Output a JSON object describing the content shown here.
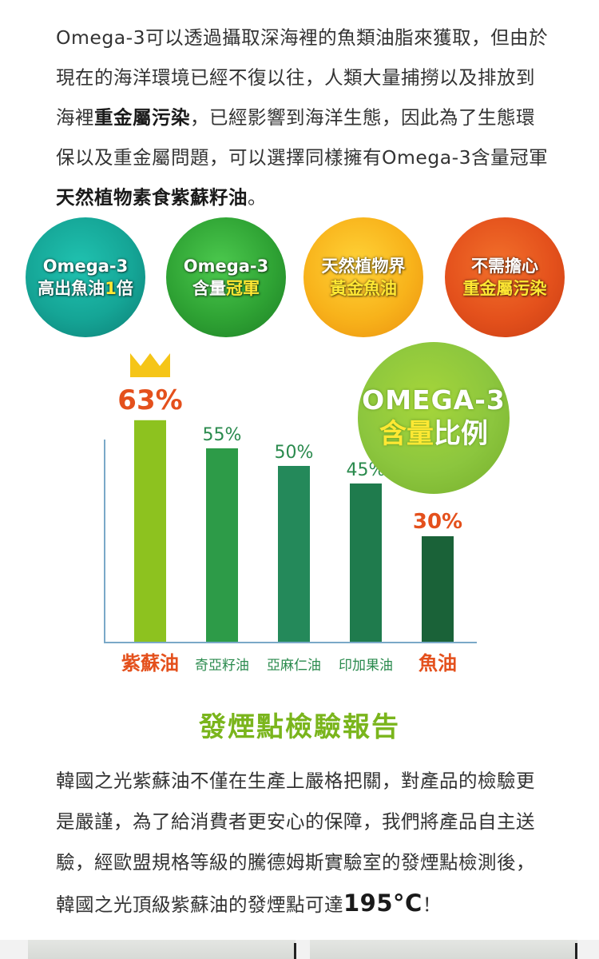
{
  "intro": {
    "line1": "Omega-3可以透過攝取深海裡的魚類油脂來獲取，但由於",
    "line2": "現在的海洋環境已經不復以往，人類大量捕撈以及排放到",
    "line3a": "海裡",
    "line3b": "重金屬污染",
    "line3c": "，已經影響到海洋生態，因此為了生態環",
    "line4": "保以及重金屬問題，可以選擇同樣擁有Omega-3含量冠軍",
    "line5a": "天然植物素食紫蘇籽油",
    "line5b": "。"
  },
  "features": [
    {
      "top": "Omega-3",
      "bottom_a": "高出魚油",
      "bottom_b": "1",
      "bottom_c": "倍"
    },
    {
      "top": "Omega-3",
      "bottom_a": "含量",
      "bottom_b": "冠軍",
      "bottom_c": ""
    },
    {
      "top": "天然植物界",
      "bottom_a": "",
      "bottom_b": "黃金魚油",
      "bottom_c": ""
    },
    {
      "top": "不需擔心",
      "bottom_a": "",
      "bottom_b": "重金屬污染",
      "bottom_c": ""
    }
  ],
  "badge": {
    "line1": "OMEGA-3",
    "line2a": "含量",
    "line2b": "比例"
  },
  "chart_data": {
    "type": "bar",
    "categories": [
      "紫蘇油",
      "奇亞籽油",
      "亞麻仁油",
      "印加果油",
      "魚油"
    ],
    "values": [
      63,
      55,
      50,
      45,
      30
    ],
    "value_labels": [
      "63%",
      "55%",
      "50%",
      "45%",
      "30%"
    ],
    "ylim": [
      0,
      70
    ],
    "colors": [
      "#8dc21f",
      "#2d9b48",
      "#24895a",
      "#1f7b4d",
      "#1a6238"
    ],
    "label_colors": [
      "#e4501c",
      "#2a8a4d",
      "#2a8a4d",
      "#2a8a4d",
      "#e4501c"
    ],
    "highlight": "紫蘇油"
  },
  "report": {
    "title": "發煙點檢驗報告",
    "line1": "韓國之光紫蘇油不僅在生產上嚴格把關，對產品的檢驗更",
    "line2": "是嚴謹，為了給消費者更安心的保障，我們將產品自主送",
    "line3": "驗，經歐盟規格等級的騰德姆斯實驗室的發煙點檢測後，",
    "line4a": "韓國之光頂級紫蘇油的發煙點可達",
    "line4b": "195°C",
    "line4c": "！"
  }
}
